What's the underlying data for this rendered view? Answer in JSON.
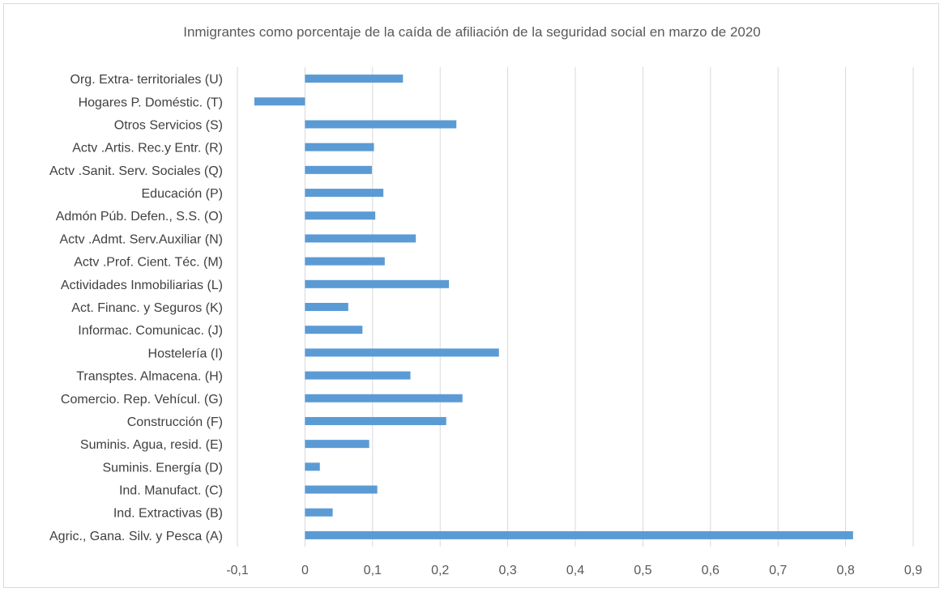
{
  "chart_data": {
    "type": "bar",
    "orientation": "horizontal",
    "title": "Inmigrantes como porcentaje de la caída de afiliación de la seguridad social en marzo de 2020",
    "xlabel": "",
    "ylabel": "",
    "xlim": [
      -0.1,
      0.9
    ],
    "x_ticks": [
      "-0,1",
      "0",
      "0,1",
      "0,2",
      "0,3",
      "0,4",
      "0,5",
      "0,6",
      "0,7",
      "0,8",
      "0,9"
    ],
    "grid": "vertical",
    "legend": "none",
    "bar_color": "#5b9bd5",
    "categories": [
      "Org. Extra- territoriales (U)",
      "Hogares P. Doméstic. (T)",
      "Otros Servicios (S)",
      "Actv .Artis. Rec.y Entr. (R)",
      "Actv .Sanit. Serv. Sociales (Q)",
      "Educación (P)",
      "Admón Púb. Defen., S.S. (O)",
      "Actv .Admt. Serv.Auxiliar (N)",
      "Actv .Prof. Cient. Téc. (M)",
      "Actividades Inmobiliarias (L)",
      "Act. Financ. y Seguros (K)",
      "Informac. Comunicac. (J)",
      "Hostelería (I)",
      "Transptes. Almacena. (H)",
      "Comercio. Rep. Vehícul. (G)",
      "Construcción (F)",
      "Suminis. Agua, resid. (E)",
      "Suminis.  Energía (D)",
      "Ind. Manufact.   (C)",
      "Ind. Extractivas (B)",
      "Agric., Gana. Silv. y Pesca (A)"
    ],
    "values": [
      0.145,
      -0.075,
      0.224,
      0.102,
      0.099,
      0.116,
      0.104,
      0.164,
      0.118,
      0.213,
      0.064,
      0.085,
      0.287,
      0.156,
      0.233,
      0.209,
      0.095,
      0.022,
      0.107,
      0.041,
      0.811
    ]
  }
}
